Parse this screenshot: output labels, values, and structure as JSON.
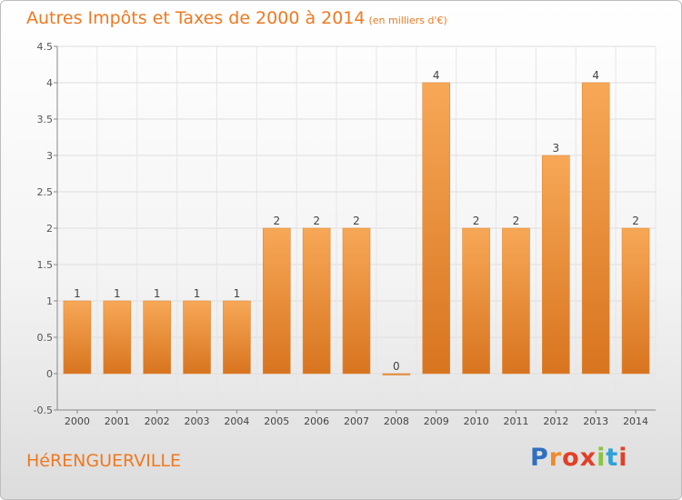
{
  "header": {
    "title": "Autres Impôts et Taxes de 2000 à 2014",
    "subtitle": "(en milliers d'€)"
  },
  "commune": {
    "name": "HéRENGUERVILLE"
  },
  "logo": {
    "text": "Proxiti",
    "colors": [
      "#2f6fc0",
      "#f08a2a",
      "#e23f28",
      "#e23f28",
      "#8ac43f",
      "#2fa1d8",
      "#e23f28"
    ]
  },
  "colors": {
    "accent": "#f07820",
    "bar_light": "#f7a857",
    "bar_dark": "#d8741f"
  },
  "chart_data": {
    "type": "bar",
    "categories": [
      "2000",
      "2001",
      "2002",
      "2003",
      "2004",
      "2005",
      "2006",
      "2007",
      "2008",
      "2009",
      "2010",
      "2011",
      "2012",
      "2013",
      "2014"
    ],
    "values": [
      1,
      1,
      1,
      1,
      1,
      2,
      2,
      2,
      0,
      4,
      2,
      2,
      3,
      4,
      2
    ],
    "data_labels": [
      "1",
      "1",
      "1",
      "1",
      "1",
      "2",
      "2",
      "2",
      "0",
      "4",
      "2",
      "2",
      "3",
      "4",
      "2"
    ],
    "ylim": [
      -0.5,
      4.5
    ],
    "yticks": [
      -0.5,
      0,
      0.5,
      1,
      1.5,
      2,
      2.5,
      3,
      3.5,
      4,
      4.5
    ],
    "ytick_labels": [
      "-0.5",
      "0",
      "0.5",
      "1",
      "1.5",
      "2",
      "2.5",
      "3",
      "3.5",
      "4",
      "4.5"
    ],
    "grid": true,
    "legend": "none"
  }
}
